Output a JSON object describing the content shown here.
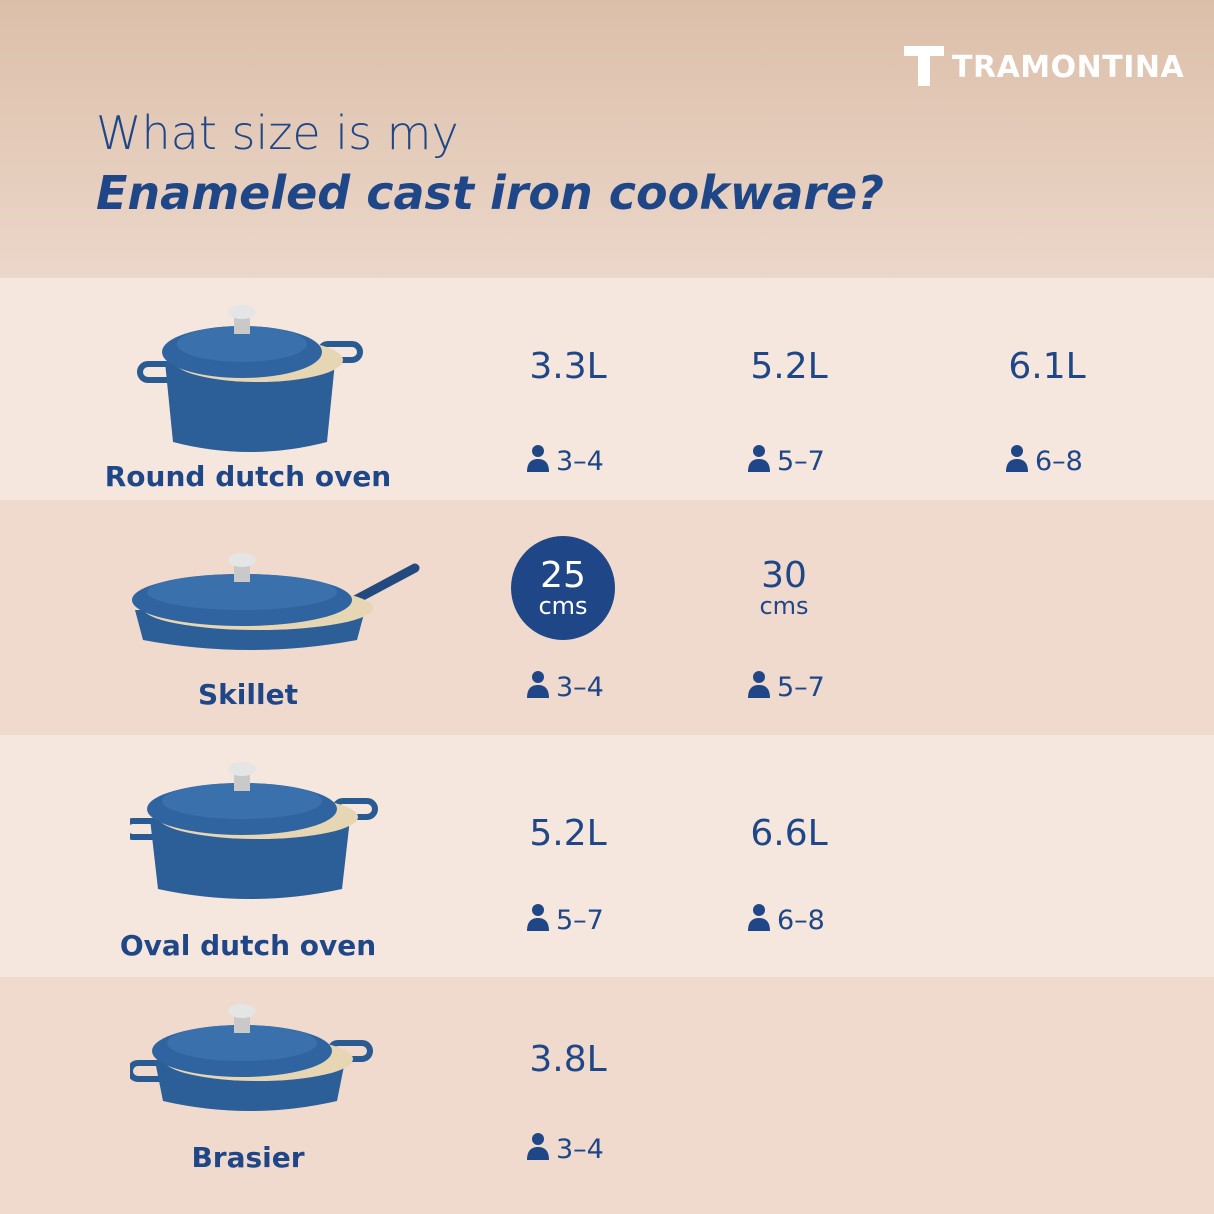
{
  "brand": "TRAMONTINA",
  "title": {
    "line1": "What size is my",
    "line2": "Enameled cast iron cookware?"
  },
  "rows": [
    {
      "name": "Round dutch oven",
      "sizes": [
        "3.3L",
        "5.2L",
        "6.1L"
      ],
      "servings": [
        "3–4",
        "5–7",
        "6–8"
      ]
    },
    {
      "name": "Skillet",
      "sizes": [
        {
          "number": "25",
          "unit": "cms",
          "highlighted": true
        },
        {
          "number": "30",
          "unit": "cms"
        }
      ],
      "servings": [
        "3–4",
        "5–7"
      ]
    },
    {
      "name": "Oval dutch oven",
      "sizes": [
        "5.2L",
        "6.6L"
      ],
      "servings": [
        "5–7",
        "6–8"
      ]
    },
    {
      "name": "Brasier",
      "sizes": [
        "3.8L"
      ],
      "servings": [
        "3–4"
      ]
    }
  ]
}
